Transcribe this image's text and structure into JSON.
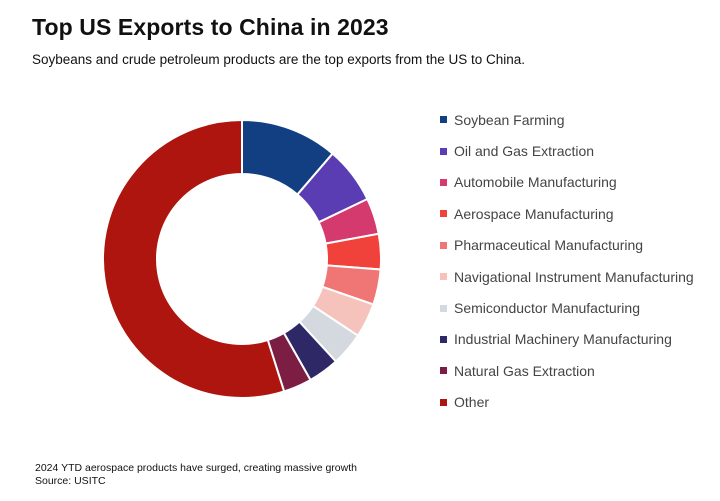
{
  "title": "Top US Exports to China in 2023",
  "subtitle": "Soybeans and crude petroleum products are the top exports from the US to China.",
  "footnote": "2024 YTD aerospace products have surged, creating massive growth",
  "source": "Source: USITC",
  "chart_data": {
    "type": "pie",
    "variant": "donut",
    "legend_position": "right",
    "categories": [
      "Soybean Farming",
      "Oil and Gas Extraction",
      "Automobile Manufacturing",
      "Aerospace Manufacturing",
      "Pharmaceutical Manufacturing",
      "Navigational Instrument Manufacturing",
      "Semiconductor Manufacturing",
      "Industrial Machinery Manufacturing",
      "Natural Gas Extraction",
      "Other"
    ],
    "values": [
      11.3,
      6.6,
      4.2,
      4.1,
      4.1,
      4.0,
      3.9,
      3.6,
      3.3,
      54.9
    ],
    "colors": [
      "#123f82",
      "#5a3db2",
      "#d43a6d",
      "#f0413a",
      "#ef7674",
      "#f5c3bc",
      "#d3d9de",
      "#2f2866",
      "#7c1e43",
      "#ad150e"
    ]
  }
}
